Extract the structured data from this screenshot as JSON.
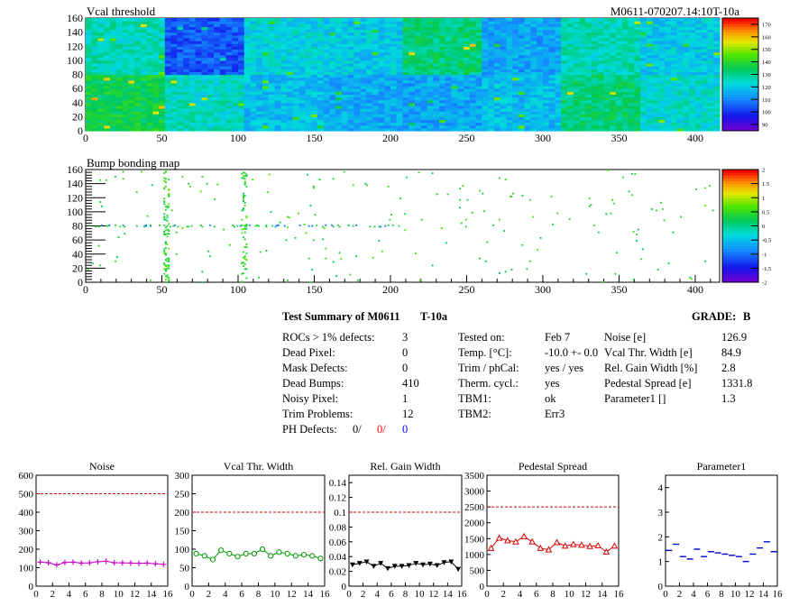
{
  "maps": [
    {
      "title": "Vcal threshold",
      "module_label": "M0611-070207.14:10T-10a",
      "x_ticks": [
        "0",
        "50",
        "100",
        "150",
        "200",
        "250",
        "300",
        "350",
        "400"
      ],
      "y_ticks": [
        "0",
        "20",
        "40",
        "60",
        "80",
        "100",
        "120",
        "140",
        "160"
      ],
      "palette": {
        "ticks": [
          "90",
          "100",
          "110",
          "120",
          "130",
          "140",
          "150",
          "160",
          "170"
        ]
      }
    },
    {
      "title": "Bump bonding map",
      "x_ticks": [
        "0",
        "50",
        "100",
        "150",
        "200",
        "250",
        "300",
        "350",
        "400"
      ],
      "y_ticks": [
        "0",
        "20",
        "40",
        "60",
        "80",
        "100",
        "120",
        "140",
        "160"
      ],
      "palette": {
        "ticks": [
          "-2",
          "-1.5",
          "-1",
          "-0.5",
          "0",
          "0.5",
          "1",
          "1.5",
          "2"
        ]
      }
    }
  ],
  "summary": {
    "title": "Test Summary of M0611",
    "test": "T-10a",
    "grade_label": "GRADE:",
    "grade": "B",
    "col1_labels": [
      "ROCs > 1% defects:",
      "Dead Pixel:",
      "Mask Defects:",
      "Dead Bumps:",
      "Noisy Pixel:",
      "Trim Problems:"
    ],
    "col1_values": [
      "3",
      "0",
      "0",
      "410",
      "1",
      "12"
    ],
    "ph_label": "PH Defects:",
    "ph_values": [
      "0/",
      "0/",
      "0"
    ],
    "ph_colors": [
      "#000000",
      "#ff0000",
      "#0000ff"
    ],
    "col2_labels": [
      "Tested on:",
      "Temp. [°C]:",
      "Trim / phCal:",
      "Therm. cycl.:",
      "TBM1:",
      "TBM2:"
    ],
    "col2_values": [
      "Feb 7",
      "-10.0 +- 0.0",
      "yes / yes",
      "yes",
      "ok",
      "Err3"
    ],
    "col3_labels": [
      "Noise [e]",
      "Vcal Thr. Width [e]",
      "Rel. Gain Width [%]",
      "Pedestal Spread [e]",
      "Parameter1 []"
    ],
    "col3_values": [
      "126.9",
      "84.9",
      "2.8",
      "1331.8",
      "1.3"
    ]
  },
  "chart_data": [
    {
      "type": "heatmap",
      "title": "Vcal threshold",
      "x_range": [
        0,
        416
      ],
      "y_range": [
        0,
        160
      ],
      "z_range": [
        85,
        175
      ],
      "roc_means_bottom_row": [
        136,
        125,
        118,
        115,
        114,
        118,
        132,
        124
      ],
      "roc_means_top_row": [
        126,
        104,
        122,
        120,
        132,
        114,
        126,
        120
      ]
    },
    {
      "type": "heatmap",
      "title": "Bump bonding map",
      "x_range": [
        0,
        416
      ],
      "y_range": [
        0,
        160
      ],
      "z_range": [
        -2,
        2
      ],
      "dead_bumps": 410
    },
    {
      "type": "scatter",
      "title": "Noise",
      "x": [
        0,
        1,
        2,
        3,
        4,
        5,
        6,
        7,
        8,
        9,
        10,
        11,
        12,
        13,
        14,
        15
      ],
      "values": [
        130,
        127,
        115,
        128,
        130,
        125,
        126,
        132,
        135,
        127,
        126,
        125,
        124,
        125,
        121,
        118
      ],
      "reference": 500,
      "ylim": [
        0,
        600
      ],
      "color": "#cc00cc",
      "marker": "cross",
      "x_ticks": [
        "0",
        "2",
        "4",
        "6",
        "8",
        "10",
        "12",
        "14",
        "16"
      ],
      "y_ticks": [
        "0",
        "100",
        "200",
        "300",
        "400",
        "500",
        "600"
      ]
    },
    {
      "type": "line",
      "title": "Vcal Thr. Width",
      "x": [
        0,
        1,
        2,
        3,
        4,
        5,
        6,
        7,
        8,
        9,
        10,
        11,
        12,
        13,
        14,
        15
      ],
      "values": [
        88,
        82,
        72,
        97,
        88,
        80,
        88,
        88,
        100,
        82,
        92,
        88,
        82,
        85,
        82,
        75
      ],
      "reference": 200,
      "ylim": [
        0,
        300
      ],
      "color": "#009900",
      "marker": "circle",
      "x_ticks": [
        "0",
        "2",
        "4",
        "6",
        "8",
        "10",
        "12",
        "14",
        "16"
      ],
      "y_ticks": [
        "0",
        "50",
        "100",
        "150",
        "200",
        "250",
        "300"
      ]
    },
    {
      "type": "line",
      "title": "Rel. Gain Width",
      "x": [
        0,
        1,
        2,
        3,
        4,
        5,
        6,
        7,
        8,
        9,
        10,
        11,
        12,
        13,
        14,
        15
      ],
      "values": [
        0.029,
        0.031,
        0.033,
        0.027,
        0.031,
        0.024,
        0.027,
        0.027,
        0.028,
        0.031,
        0.029,
        0.03,
        0.028,
        0.032,
        0.033,
        0.023
      ],
      "reference": 0.1,
      "ylim": [
        0,
        0.15
      ],
      "color": "#000000",
      "marker": "triangle-down",
      "x_ticks": [
        "0",
        "2",
        "4",
        "6",
        "8",
        "10",
        "12",
        "14",
        "16"
      ],
      "y_ticks": [
        "0",
        "0.02",
        "0.04",
        "0.06",
        "0.08",
        "0.1",
        "0.12",
        "0.14"
      ]
    },
    {
      "type": "line",
      "title": "Pedestal Spread",
      "x": [
        0,
        1,
        2,
        3,
        4,
        5,
        6,
        7,
        8,
        9,
        10,
        11,
        12,
        13,
        14,
        15
      ],
      "values": [
        1200,
        1520,
        1440,
        1400,
        1570,
        1400,
        1200,
        1150,
        1380,
        1270,
        1320,
        1300,
        1260,
        1280,
        1080,
        1270
      ],
      "reference": 2500,
      "ylim": [
        0,
        3500
      ],
      "color": "#dd0000",
      "marker": "triangle-up",
      "x_ticks": [
        "0",
        "2",
        "4",
        "6",
        "8",
        "10",
        "12",
        "14",
        "16"
      ],
      "y_ticks": [
        "0",
        "500",
        "1000",
        "1500",
        "2000",
        "2500",
        "3000",
        "3500"
      ]
    },
    {
      "type": "scatter",
      "title": "Parameter1",
      "x": [
        0,
        1,
        2,
        3,
        4,
        5,
        6,
        7,
        8,
        9,
        10,
        11,
        12,
        13,
        14,
        15
      ],
      "values": [
        1.45,
        1.7,
        1.2,
        1.1,
        1.5,
        1.2,
        1.4,
        1.35,
        1.3,
        1.25,
        1.2,
        1.0,
        1.3,
        1.55,
        1.8,
        1.4
      ],
      "ylim": [
        0,
        4.5
      ],
      "color": "#0000cc",
      "marker": "dash",
      "x_ticks": [
        "0",
        "2",
        "4",
        "6",
        "8",
        "10",
        "12",
        "14",
        "16"
      ],
      "y_ticks": [
        "0",
        "1",
        "2",
        "3",
        "4"
      ]
    }
  ]
}
